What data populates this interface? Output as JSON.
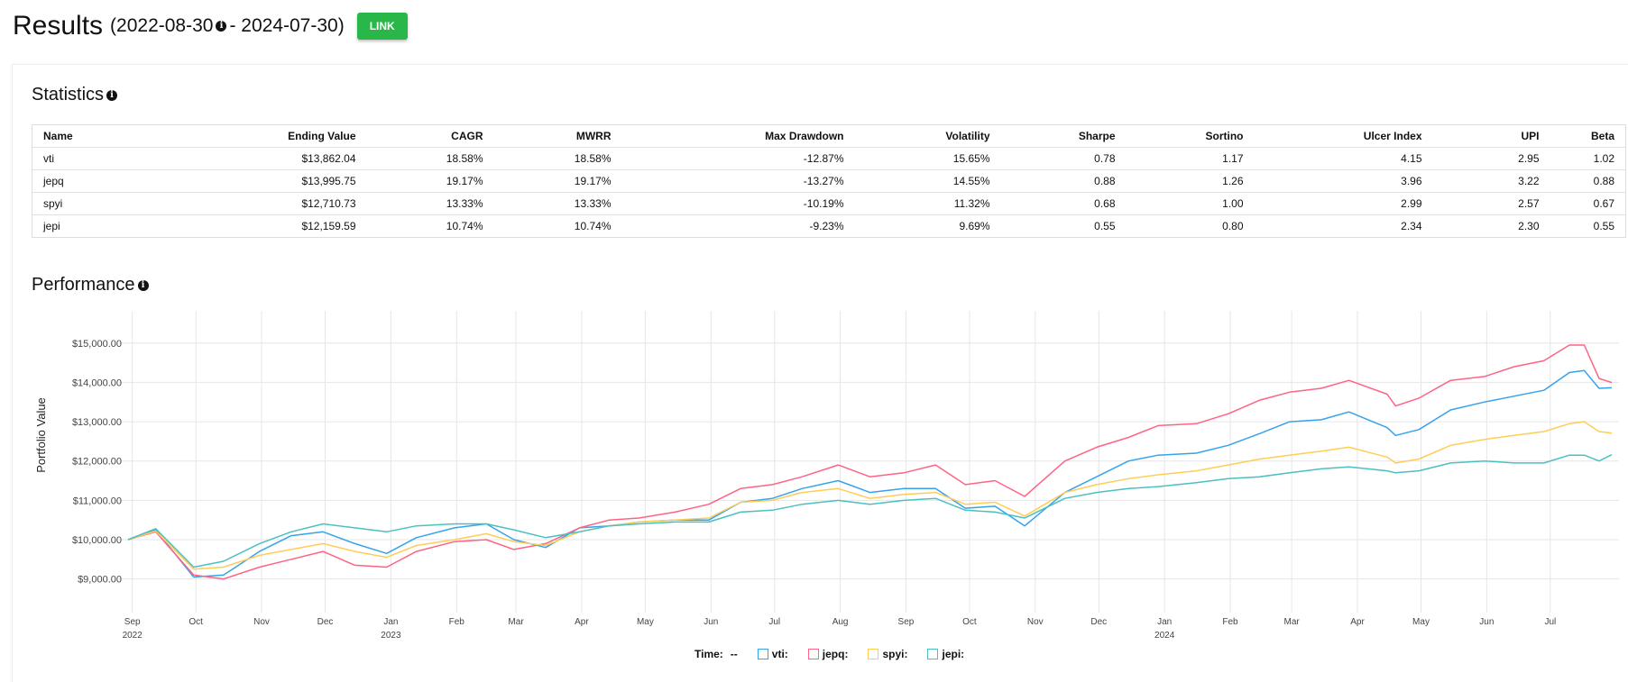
{
  "header": {
    "title": "Results",
    "start_date": "(2022-08-30",
    "end_date": " - 2024-07-30)",
    "link_label": "LINK",
    "link_color": "#2ab74a"
  },
  "statistics": {
    "heading": "Statistics",
    "columns": [
      "Name",
      "Ending Value",
      "CAGR",
      "MWRR",
      "Max Drawdown",
      "Volatility",
      "Sharpe",
      "Sortino",
      "Ulcer Index",
      "UPI",
      "Beta"
    ],
    "rows": [
      [
        "vti",
        "$13,862.04",
        "18.58%",
        "18.58%",
        "-12.87%",
        "15.65%",
        "0.78",
        "1.17",
        "4.15",
        "2.95",
        "1.02"
      ],
      [
        "jepq",
        "$13,995.75",
        "19.17%",
        "19.17%",
        "-13.27%",
        "14.55%",
        "0.88",
        "1.26",
        "3.96",
        "3.22",
        "0.88"
      ],
      [
        "spyi",
        "$12,710.73",
        "13.33%",
        "13.33%",
        "-10.19%",
        "11.32%",
        "0.68",
        "1.00",
        "2.99",
        "2.57",
        "0.67"
      ],
      [
        "jepi",
        "$12,159.59",
        "10.74%",
        "10.74%",
        "-9.23%",
        "9.69%",
        "0.55",
        "0.80",
        "2.34",
        "2.30",
        "0.55"
      ]
    ]
  },
  "performance": {
    "heading": "Performance",
    "legend": {
      "time_label": "Time:",
      "time_value": "--"
    }
  },
  "chart_data": {
    "type": "line",
    "title": "",
    "xlabel": "",
    "ylabel": "Portfolio Value",
    "xlim": [
      "2022-08-30",
      "2024-07-30"
    ],
    "ylim": [
      8350,
      15820
    ],
    "grid": true,
    "legend_position": "bottom",
    "y_ticks": [
      "$9,000.00",
      "$10,000.00",
      "$11,000.00",
      "$12,000.00",
      "$13,000.00",
      "$14,000.00",
      "$15,000.00"
    ],
    "y_tick_values": [
      9000,
      10000,
      11000,
      12000,
      13000,
      14000,
      15000
    ],
    "x_ticks": [
      {
        "date": "2022-09-01",
        "label": "Sep",
        "year": "2022"
      },
      {
        "date": "2022-10-01",
        "label": "Oct",
        "year": ""
      },
      {
        "date": "2022-11-01",
        "label": "Nov",
        "year": ""
      },
      {
        "date": "2022-12-01",
        "label": "Dec",
        "year": ""
      },
      {
        "date": "2023-01-01",
        "label": "Jan",
        "year": "2023"
      },
      {
        "date": "2023-02-01",
        "label": "Feb",
        "year": ""
      },
      {
        "date": "2023-03-01",
        "label": "Mar",
        "year": ""
      },
      {
        "date": "2023-04-01",
        "label": "Apr",
        "year": ""
      },
      {
        "date": "2023-05-01",
        "label": "May",
        "year": ""
      },
      {
        "date": "2023-06-01",
        "label": "Jun",
        "year": ""
      },
      {
        "date": "2023-07-01",
        "label": "Jul",
        "year": ""
      },
      {
        "date": "2023-08-01",
        "label": "Aug",
        "year": ""
      },
      {
        "date": "2023-09-01",
        "label": "Sep",
        "year": ""
      },
      {
        "date": "2023-10-01",
        "label": "Oct",
        "year": ""
      },
      {
        "date": "2023-11-01",
        "label": "Nov",
        "year": ""
      },
      {
        "date": "2023-12-01",
        "label": "Dec",
        "year": ""
      },
      {
        "date": "2024-01-01",
        "label": "Jan",
        "year": "2024"
      },
      {
        "date": "2024-02-01",
        "label": "Feb",
        "year": ""
      },
      {
        "date": "2024-03-01",
        "label": "Mar",
        "year": ""
      },
      {
        "date": "2024-04-01",
        "label": "Apr",
        "year": ""
      },
      {
        "date": "2024-05-01",
        "label": "May",
        "year": ""
      },
      {
        "date": "2024-06-01",
        "label": "Jun",
        "year": ""
      },
      {
        "date": "2024-07-01",
        "label": "Jul",
        "year": ""
      }
    ],
    "x": [
      "2022-08-30",
      "2022-09-12",
      "2022-09-30",
      "2022-10-14",
      "2022-10-31",
      "2022-11-15",
      "2022-11-30",
      "2022-12-15",
      "2022-12-30",
      "2023-01-13",
      "2023-01-31",
      "2023-02-15",
      "2023-02-28",
      "2023-03-15",
      "2023-03-31",
      "2023-04-14",
      "2023-04-28",
      "2023-05-15",
      "2023-05-31",
      "2023-06-15",
      "2023-06-30",
      "2023-07-14",
      "2023-07-31",
      "2023-08-15",
      "2023-08-31",
      "2023-09-15",
      "2023-09-29",
      "2023-10-13",
      "2023-10-27",
      "2023-11-15",
      "2023-11-30",
      "2023-12-15",
      "2023-12-29",
      "2024-01-16",
      "2024-01-31",
      "2024-02-15",
      "2024-02-29",
      "2024-03-15",
      "2024-03-28",
      "2024-04-15",
      "2024-04-19",
      "2024-04-30",
      "2024-05-15",
      "2024-05-31",
      "2024-06-14",
      "2024-06-28",
      "2024-07-10",
      "2024-07-17",
      "2024-07-24",
      "2024-07-30"
    ],
    "series": [
      {
        "name": "vti",
        "color": "#36a2eb",
        "values": [
          10000,
          10250,
          9050,
          9100,
          9700,
          10100,
          10200,
          9900,
          9650,
          10050,
          10300,
          10400,
          10000,
          9800,
          10300,
          10350,
          10450,
          10500,
          10500,
          10950,
          11050,
          11300,
          11500,
          11200,
          11300,
          11300,
          10800,
          10850,
          10350,
          11200,
          11600,
          12000,
          12150,
          12200,
          12400,
          12700,
          13000,
          13050,
          13250,
          12850,
          12650,
          12800,
          13300,
          13500,
          13650,
          13800,
          14250,
          14300,
          13850,
          13862
        ]
      },
      {
        "name": "jepq",
        "color": "#ff6384",
        "values": [
          10000,
          10200,
          9100,
          9000,
          9300,
          9500,
          9700,
          9350,
          9300,
          9700,
          9950,
          10000,
          9750,
          9900,
          10300,
          10500,
          10550,
          10700,
          10900,
          11300,
          11400,
          11600,
          11900,
          11600,
          11700,
          11900,
          11400,
          11500,
          11100,
          12000,
          12350,
          12600,
          12900,
          12950,
          13200,
          13550,
          13750,
          13850,
          14050,
          13700,
          13400,
          13600,
          14050,
          14150,
          14400,
          14550,
          14950,
          14950,
          14100,
          13996
        ]
      },
      {
        "name": "spyi",
        "color": "#ffcd56",
        "values": [
          10000,
          10220,
          9250,
          9300,
          9600,
          9750,
          9900,
          9700,
          9550,
          9850,
          10000,
          10150,
          9950,
          9850,
          10200,
          10350,
          10450,
          10500,
          10550,
          10950,
          11000,
          11200,
          11300,
          11050,
          11150,
          11200,
          10900,
          10950,
          10600,
          11200,
          11400,
          11550,
          11650,
          11750,
          11900,
          12050,
          12150,
          12250,
          12350,
          12100,
          11950,
          12050,
          12400,
          12550,
          12650,
          12750,
          12950,
          13000,
          12750,
          12711
        ]
      },
      {
        "name": "jepi",
        "color": "#4bc0c0",
        "values": [
          10000,
          10280,
          9300,
          9450,
          9900,
          10200,
          10400,
          10300,
          10200,
          10350,
          10400,
          10400,
          10250,
          10050,
          10200,
          10350,
          10400,
          10450,
          10450,
          10700,
          10750,
          10900,
          11000,
          10900,
          11000,
          11050,
          10750,
          10700,
          10550,
          11050,
          11200,
          11300,
          11350,
          11450,
          11550,
          11600,
          11700,
          11800,
          11850,
          11750,
          11700,
          11750,
          11950,
          12000,
          11950,
          11950,
          12150,
          12150,
          12000,
          12160
        ]
      }
    ]
  }
}
